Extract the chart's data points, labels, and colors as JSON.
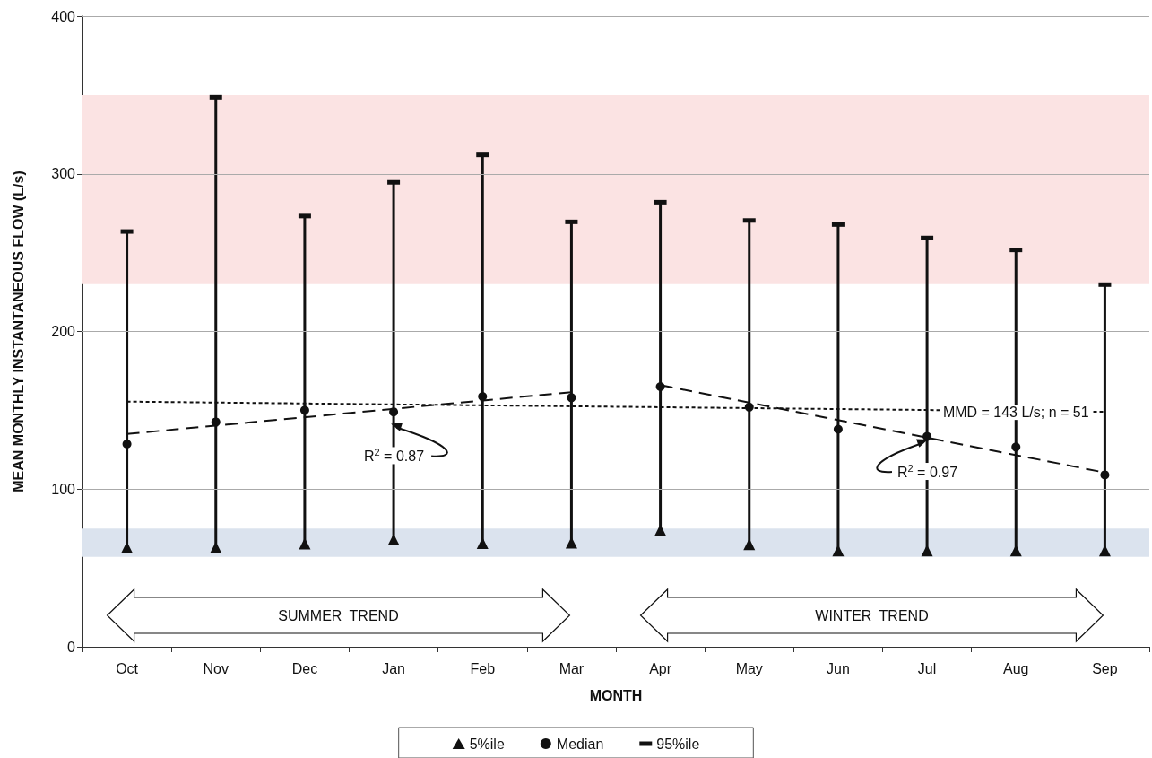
{
  "chart_data": {
    "type": "scatter",
    "xlabel": "MONTH",
    "ylabel": "MEAN MONTHLY INSTANTANEOUS FLOW (L/s)",
    "categories": [
      "Oct",
      "Nov",
      "Dec",
      "Jan",
      "Feb",
      "Mar",
      "Apr",
      "May",
      "Jun",
      "Jul",
      "Aug",
      "Sep"
    ],
    "series": [
      {
        "name": "5%ile",
        "type": "scatter",
        "marker": "triangle",
        "color": "#111111",
        "values": [
          63,
          63,
          65.5,
          68,
          65.7,
          66,
          74,
          65,
          61,
          61,
          61,
          61
        ]
      },
      {
        "name": "Median",
        "type": "scatter",
        "marker": "circle",
        "color": "#111111",
        "values": [
          128.6,
          142.6,
          150,
          149,
          158.7,
          158,
          165,
          152,
          138,
          133.4,
          126.7,
          109
        ]
      },
      {
        "name": "95%ile",
        "type": "scatter",
        "marker": "square",
        "color": "#111111",
        "values": [
          263.4,
          348.6,
          273.2,
          294.6,
          312,
          269.5,
          282,
          270.4,
          267.8,
          259.3,
          251.7,
          229.7
        ]
      },
      {
        "type": "line",
        "line_style": "dotted",
        "marker": "none",
        "color": "#111111",
        "x": [
          "Oct",
          "Sep"
        ],
        "values": [
          155.5,
          149
        ]
      },
      {
        "type": "line",
        "line_style": "dashed",
        "marker": "none",
        "color": "#111111",
        "x": [
          "Oct",
          "Mar"
        ],
        "values": [
          135,
          161.5
        ]
      },
      {
        "type": "line",
        "line_style": "dashed",
        "marker": "none",
        "color": "#111111",
        "x": [
          "Apr",
          "Sep"
        ],
        "values": [
          166,
          110.5
        ]
      }
    ],
    "ylim": [
      0,
      400
    ],
    "yticks": [
      0,
      100,
      200,
      300,
      400
    ],
    "grid": "y",
    "legend": "bottom",
    "bands": [
      {
        "axis": "y",
        "from": 230,
        "to": 350,
        "color": "#fbe3e3"
      },
      {
        "axis": "y",
        "from": 57,
        "to": 75,
        "color": "#dbe3ee"
      }
    ],
    "annotations": [
      "R$^{2}$ = 0.87",
      "R$^{2}$ = 0.97",
      {
        "text": "MMD = 143 L/s; n = 51",
        "x": "Aug",
        "y": 149
      },
      "SUMMER TREND",
      "WINTER TREND"
    ]
  }
}
